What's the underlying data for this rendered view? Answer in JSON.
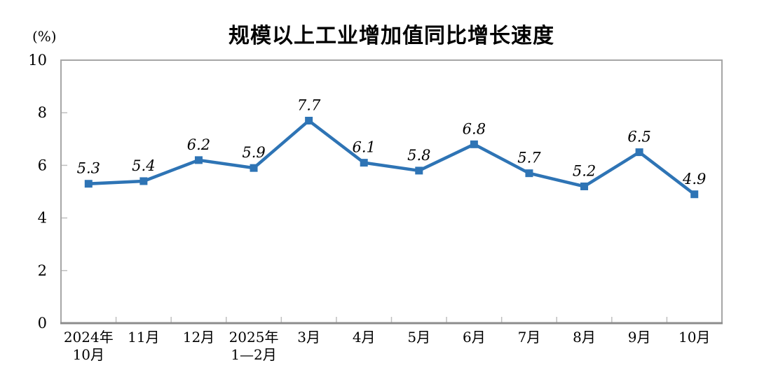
{
  "chart_data": {
    "type": "line",
    "title": "规模以上工业增加值同比增长速度",
    "unit_label": "(%)",
    "categories": [
      "2024年\n10月",
      "11月",
      "12月",
      "2025年\n1—2月",
      "3月",
      "4月",
      "5月",
      "6月",
      "7月",
      "8月",
      "9月",
      "10月"
    ],
    "values": [
      5.3,
      5.4,
      6.2,
      5.9,
      7.7,
      6.1,
      5.8,
      6.8,
      5.7,
      5.2,
      6.5,
      4.9
    ],
    "data_labels": [
      "5.3",
      "5.4",
      "6.2",
      "5.9",
      "7.7",
      "6.1",
      "5.8",
      "6.8",
      "5.7",
      "5.2",
      "6.5",
      "4.9"
    ],
    "ylim": [
      0,
      10
    ],
    "yticks": [
      0,
      2,
      4,
      6,
      8,
      10
    ],
    "xlabel": "",
    "ylabel": "(%)",
    "grid": false,
    "legend": false,
    "marker": "square",
    "line_color": "#2E74B5",
    "axis_color": "#A6A6A6",
    "x_axis_color": "#8C8C8C",
    "tick_color": "#BFBFBF",
    "label_color": "#000000"
  }
}
